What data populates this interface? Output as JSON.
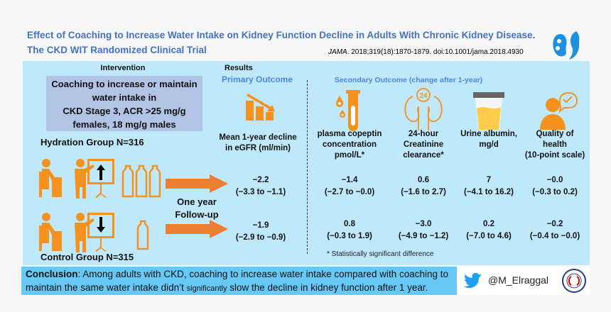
{
  "header": {
    "title_line1": "Effect of Coaching to Increase Water Intake on Kidney Function Decline in Adults With Chronic Kidney Disease.",
    "title_line2": "The CKD WIT Randomized Clinical Trial",
    "citation_journal": "JAMA",
    "citation_rest": ". 2018;319(18):1870-1879. doi:10.1001/jama.2018.4930"
  },
  "intervention": {
    "heading": "Intervention",
    "box_lines": [
      "Coaching to increase or maintain",
      "water intake in",
      "CKD Stage 3, ACR >25 mg/g",
      "females, 18 mg/g males"
    ],
    "hydration_group": "Hydration Group N=316",
    "control_group": "Control Group N=315",
    "followup_line1": "One year",
    "followup_line2": "Follow-up"
  },
  "results": {
    "heading": "Results",
    "primary": {
      "title": "Primary Outcome",
      "label_line1": "Mean 1-year decline",
      "label_line2": "in eGFR (ml/min)",
      "hydration": {
        "value": "−2.2",
        "ci": "(−3.3 to −1.1)"
      },
      "control": {
        "value": "−1.9",
        "ci": "(−2.9 to −0.9)"
      }
    },
    "secondary_title": "Secondary Outcome  (change after 1-year)",
    "secondary": [
      {
        "icon": "test-tube-icon",
        "label": [
          "plasma copeptin",
          "concentration",
          "pmol/L*"
        ],
        "hydration": {
          "value": "−1.4",
          "ci": "(−2.7 to −0.0)"
        },
        "control": {
          "value": "0.8",
          "ci": "(−0.3 to 1.9)"
        }
      },
      {
        "icon": "kidney-24h-icon",
        "label": [
          "24-hour",
          "Creatinine",
          "clearance*"
        ],
        "hydration": {
          "value": "0.6",
          "ci": "(−1.6 to 2.7)"
        },
        "control": {
          "value": "−3.0",
          "ci": "(−4.9 to −1.2)"
        }
      },
      {
        "icon": "urine-cup-icon",
        "label": [
          "Urine albumin,",
          "mg/d",
          ""
        ],
        "hydration": {
          "value": "7",
          "ci": "(−4.1 to 16.2)"
        },
        "control": {
          "value": "0.2",
          "ci": "(−7.0 to 4.6)"
        }
      },
      {
        "icon": "person-check-icon",
        "label": [
          "Quality of",
          "health",
          "(10-point scale)"
        ],
        "hydration": {
          "value": "−0.0",
          "ci": "(−0.3 to 0.2)"
        },
        "control": {
          "value": "−0.2",
          "ci": "(−0.4 to −0.0)"
        }
      }
    ],
    "footnote": "* Statistically significant difference"
  },
  "conclusion": {
    "label": "Conclusion",
    "text1": ": Among adults with CKD, coaching to increase water intake compared with coaching to",
    "text2a": "maintain the same water intake didn’t ",
    "text2b": "significantly",
    "text2c": " slow the decline in kidney function after 1 year."
  },
  "social": {
    "handle": "@M_Elraggal"
  },
  "colors": {
    "title_blue": "#4472c4",
    "panel": "#bfe8fb",
    "orange": "#f5921e",
    "arrow": "#ed7d31",
    "conclusion_bg": "#66c8f5"
  }
}
